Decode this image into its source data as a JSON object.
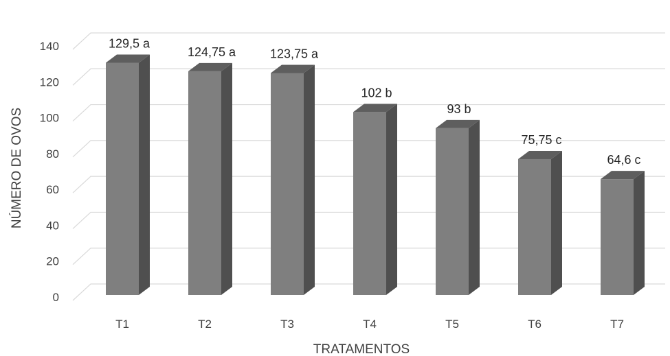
{
  "chart_data": {
    "type": "bar",
    "style": "3d-column",
    "categories": [
      "T1",
      "T2",
      "T3",
      "T4",
      "T5",
      "T6",
      "T7"
    ],
    "values": [
      129.5,
      124.75,
      123.75,
      102,
      93,
      75.75,
      64.6
    ],
    "data_labels": [
      "129,5 a",
      "124,75 a",
      "123,75 a",
      "102 b",
      "93 b",
      "75,75 c",
      "64,6 c"
    ],
    "xlabel": "TRATAMENTOS",
    "ylabel": "NÚMERO DE OVOS",
    "ylim": [
      0,
      140
    ],
    "yticks": [
      0,
      20,
      40,
      60,
      80,
      100,
      120,
      140
    ],
    "grid": true,
    "legend": "none",
    "colors": {
      "bar_front": "#7f7f7f",
      "bar_side": "#4f4f4f",
      "bar_top": "#5e5e5e",
      "gridline": "#d9d9d9",
      "text": "#404040"
    }
  }
}
